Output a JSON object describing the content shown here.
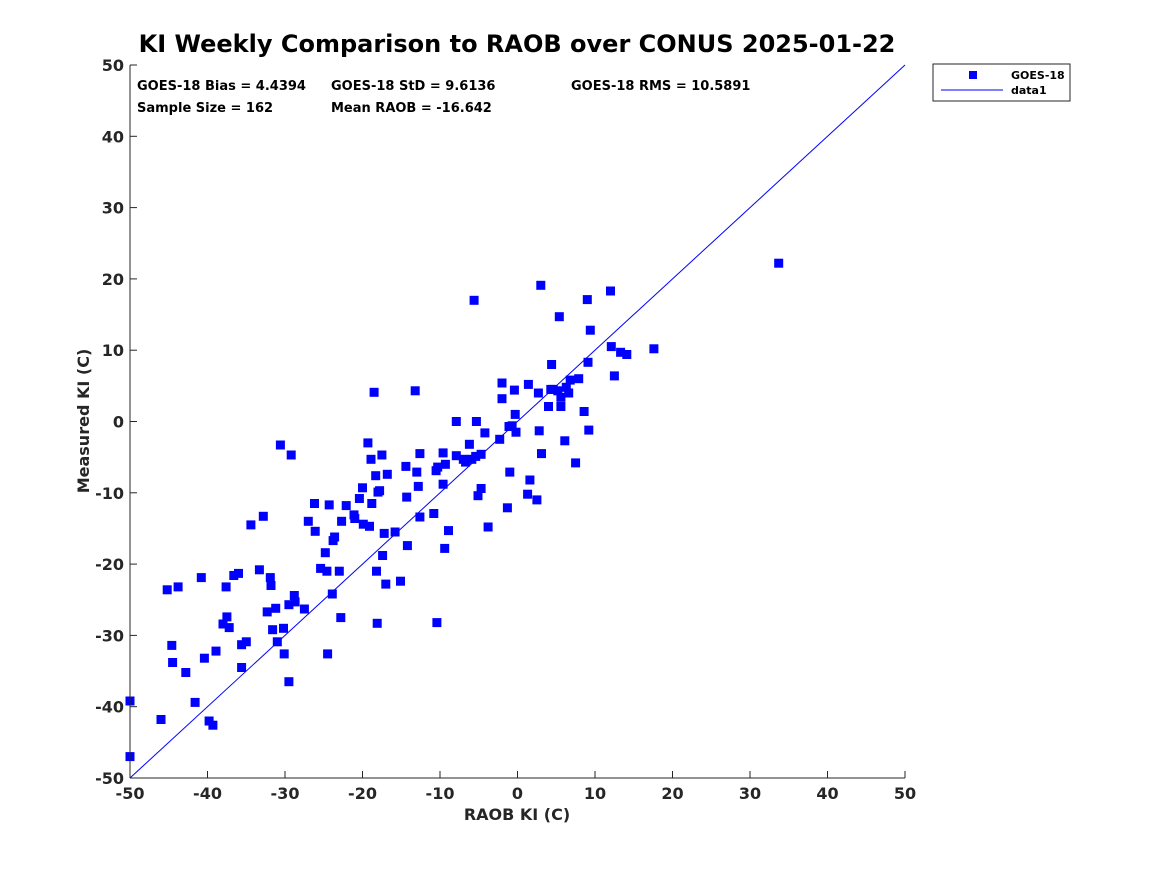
{
  "colors": {
    "marker": "#0000ff",
    "line": "#0000ff",
    "axis": "#262626",
    "background": "#ffffff"
  },
  "stats": {
    "bias": "GOES-18 Bias = 4.4394",
    "std": "GOES-18 StD = 9.6136",
    "rms": "GOES-18 RMS = 10.5891",
    "sample_size": "Sample Size = 162",
    "mean_raob": "Mean RAOB = -16.642"
  },
  "chart_data": {
    "type": "scatter",
    "title": "KI Weekly Comparison to RAOB over CONUS 2025-01-22",
    "xlabel": "RAOB KI (C)",
    "ylabel": "Measured KI (C)",
    "xlim": [
      -50,
      50
    ],
    "ylim": [
      -50,
      50
    ],
    "xticks": [
      "-50",
      "-40",
      "-30",
      "-20",
      "-10",
      "0",
      "10",
      "20",
      "30",
      "40",
      "50"
    ],
    "yticks": [
      "50",
      "40",
      "30",
      "20",
      "10",
      "0",
      "-10",
      "-20",
      "-30",
      "-40",
      "-50"
    ],
    "legend_position": "outside-top-right",
    "series": [
      {
        "name": "GOES-18",
        "kind": "markers",
        "points": [
          [
            -50,
            -47
          ],
          [
            -50,
            -39.2
          ],
          [
            -46,
            -41.8
          ],
          [
            -45.2,
            -23.6
          ],
          [
            -44.6,
            -31.4
          ],
          [
            -44.5,
            -33.8
          ],
          [
            -43.8,
            -23.2
          ],
          [
            -42.8,
            -35.2
          ],
          [
            -41.6,
            -39.4
          ],
          [
            -40.8,
            -21.9
          ],
          [
            -40.4,
            -33.2
          ],
          [
            -39.8,
            -42
          ],
          [
            -39.3,
            -42.6
          ],
          [
            -38.9,
            -32.2
          ],
          [
            -38,
            -28.4
          ],
          [
            -37.6,
            -23.2
          ],
          [
            -37.5,
            -27.4
          ],
          [
            -37.2,
            -28.9
          ],
          [
            -36.6,
            -21.6
          ],
          [
            -36,
            -21.3
          ],
          [
            -35.6,
            -31.3
          ],
          [
            -35.6,
            -34.5
          ],
          [
            -35,
            -30.9
          ],
          [
            -34.4,
            -14.5
          ],
          [
            -33.3,
            -20.8
          ],
          [
            -32.8,
            -13.3
          ],
          [
            -32.3,
            -26.7
          ],
          [
            -31.9,
            -21.9
          ],
          [
            -31.8,
            -23
          ],
          [
            -31.6,
            -29.2
          ],
          [
            -31.2,
            -26.2
          ],
          [
            -31,
            -30.9
          ],
          [
            -30.6,
            -3.3
          ],
          [
            -30.2,
            -29
          ],
          [
            -30.1,
            -32.6
          ],
          [
            -29.5,
            -25.7
          ],
          [
            -29.5,
            -36.5
          ],
          [
            -29.2,
            -4.7
          ],
          [
            -28.8,
            -24.4
          ],
          [
            -28.7,
            -25.3
          ],
          [
            -27.5,
            -26.3
          ],
          [
            -27,
            -14
          ],
          [
            -26.2,
            -11.5
          ],
          [
            -26.1,
            -15.4
          ],
          [
            -25.4,
            -20.6
          ],
          [
            -24.8,
            -18.4
          ],
          [
            -24.6,
            -21
          ],
          [
            -24.5,
            -32.6
          ],
          [
            -24.3,
            -11.7
          ],
          [
            -23.9,
            -24.2
          ],
          [
            -23.8,
            -16.7
          ],
          [
            -23.6,
            -16.2
          ],
          [
            -23,
            -21
          ],
          [
            -22.8,
            -27.5
          ],
          [
            -22.7,
            -14
          ],
          [
            -22.1,
            -11.8
          ],
          [
            -21.1,
            -13.1
          ],
          [
            -21,
            -13.6
          ],
          [
            -20.4,
            -10.8
          ],
          [
            -20,
            -9.3
          ],
          [
            -19.9,
            -14.4
          ],
          [
            -19.3,
            -3
          ],
          [
            -19.1,
            -14.7
          ],
          [
            -18.9,
            -5.3
          ],
          [
            -18.8,
            -11.5
          ],
          [
            -18.5,
            4.1
          ],
          [
            -18.3,
            -7.6
          ],
          [
            -18.2,
            -21
          ],
          [
            -18.1,
            -28.3
          ],
          [
            -18,
            -9.9
          ],
          [
            -17.8,
            -9.7
          ],
          [
            -17.5,
            -4.7
          ],
          [
            -17.4,
            -18.8
          ],
          [
            -17.2,
            -15.7
          ],
          [
            -17,
            -22.8
          ],
          [
            -16.8,
            -7.4
          ],
          [
            -15.8,
            -15.5
          ],
          [
            -15.1,
            -22.4
          ],
          [
            -14.4,
            -6.3
          ],
          [
            -14.3,
            -10.6
          ],
          [
            -14.2,
            -17.4
          ],
          [
            -13.2,
            4.3
          ],
          [
            -13,
            -7.1
          ],
          [
            -12.8,
            -9.1
          ],
          [
            -12.6,
            -13.4
          ],
          [
            -12.6,
            -4.5
          ],
          [
            -10.8,
            -12.9
          ],
          [
            -10.5,
            -6.9
          ],
          [
            -10.4,
            -28.2
          ],
          [
            -10.3,
            -6.4
          ],
          [
            -9.6,
            -8.8
          ],
          [
            -9.6,
            -4.4
          ],
          [
            -9.4,
            -17.8
          ],
          [
            -9.3,
            -6
          ],
          [
            -8.9,
            -15.3
          ],
          [
            -7.9,
            0
          ],
          [
            -7.9,
            -4.8
          ],
          [
            -7,
            -5.3
          ],
          [
            -6.7,
            -5.7
          ],
          [
            -6.2,
            -3.2
          ],
          [
            -5.9,
            -5.3
          ],
          [
            -5.6,
            17
          ],
          [
            -5.4,
            -4.9
          ],
          [
            -5.3,
            0
          ],
          [
            -5.1,
            -10.4
          ],
          [
            -4.7,
            -9.4
          ],
          [
            -4.7,
            -4.6
          ],
          [
            -4.2,
            -1.6
          ],
          [
            -3.8,
            -14.8
          ],
          [
            -2.3,
            -2.5
          ],
          [
            -2,
            5.4
          ],
          [
            -2,
            3.2
          ],
          [
            -1.3,
            -12.1
          ],
          [
            -1.1,
            -0.7
          ],
          [
            -1,
            -7.1
          ],
          [
            -0.7,
            -0.6
          ],
          [
            -0.4,
            4.4
          ],
          [
            -0.3,
            1
          ],
          [
            -0.2,
            -1.5
          ],
          [
            1.3,
            -10.2
          ],
          [
            1.4,
            5.2
          ],
          [
            1.6,
            -8.2
          ],
          [
            2.5,
            -11
          ],
          [
            2.7,
            4
          ],
          [
            2.8,
            -1.3
          ],
          [
            3,
            19.1
          ],
          [
            3.1,
            -4.5
          ],
          [
            4,
            2.1
          ],
          [
            4.3,
            4.5
          ],
          [
            4.4,
            8
          ],
          [
            4.6,
            4.5
          ],
          [
            5.2,
            4.3
          ],
          [
            5.4,
            14.7
          ],
          [
            5.6,
            2.1
          ],
          [
            5.6,
            3.4
          ],
          [
            6.1,
            -2.7
          ],
          [
            6.3,
            4.8
          ],
          [
            6.6,
            4
          ],
          [
            6.8,
            5.8
          ],
          [
            7.5,
            -5.8
          ],
          [
            7.9,
            6
          ],
          [
            8.6,
            1.4
          ],
          [
            9,
            17.1
          ],
          [
            9.1,
            8.3
          ],
          [
            9.2,
            -1.2
          ],
          [
            9.4,
            12.8
          ],
          [
            12,
            18.3
          ],
          [
            12.1,
            10.5
          ],
          [
            12.5,
            6.4
          ],
          [
            13.3,
            9.7
          ],
          [
            14.1,
            9.4
          ],
          [
            17.6,
            10.2
          ],
          [
            33.7,
            22.2
          ]
        ]
      },
      {
        "name": "data1",
        "kind": "line",
        "points": [
          [
            -50,
            -50
          ],
          [
            50,
            50
          ]
        ]
      }
    ]
  }
}
